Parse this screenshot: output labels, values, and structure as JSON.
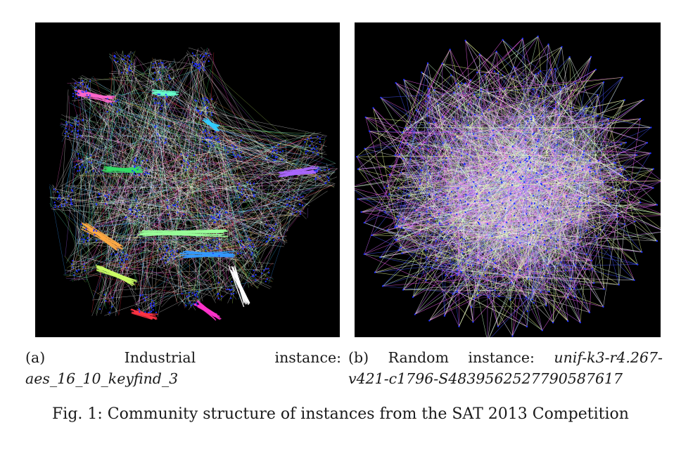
{
  "subfigures": [
    {
      "label": "(a)",
      "caption_word_1": "Industrial",
      "caption_word_2": "instance:",
      "instance_name": "aes_16_10_keyfind_3"
    },
    {
      "label": "(b)",
      "caption_word_1": "Random",
      "caption_word_2": "instance:",
      "instance_name_line1": "unif-k3-r4.267-",
      "instance_name_line2": "v421-c1796-S4839562527790587617"
    }
  ],
  "figure_caption": "Fig. 1: Community structure of instances from the SAT 2013 Competition",
  "colors": {
    "background": "#000000",
    "nodes": "#2233ff",
    "community_palette_a": [
      "#ff66cc",
      "#33dd66",
      "#99ff99",
      "#ffaa44",
      "#3399ff",
      "#ff33cc",
      "#ff3344",
      "#ffffff",
      "#66ffcc",
      "#ccff66",
      "#aa66ff",
      "#33ccff"
    ],
    "community_palette_b": [
      "#cc66ff",
      "#eeff99",
      "#ffffff",
      "#ff66ff",
      "#4455ff",
      "#ccffcc"
    ]
  }
}
